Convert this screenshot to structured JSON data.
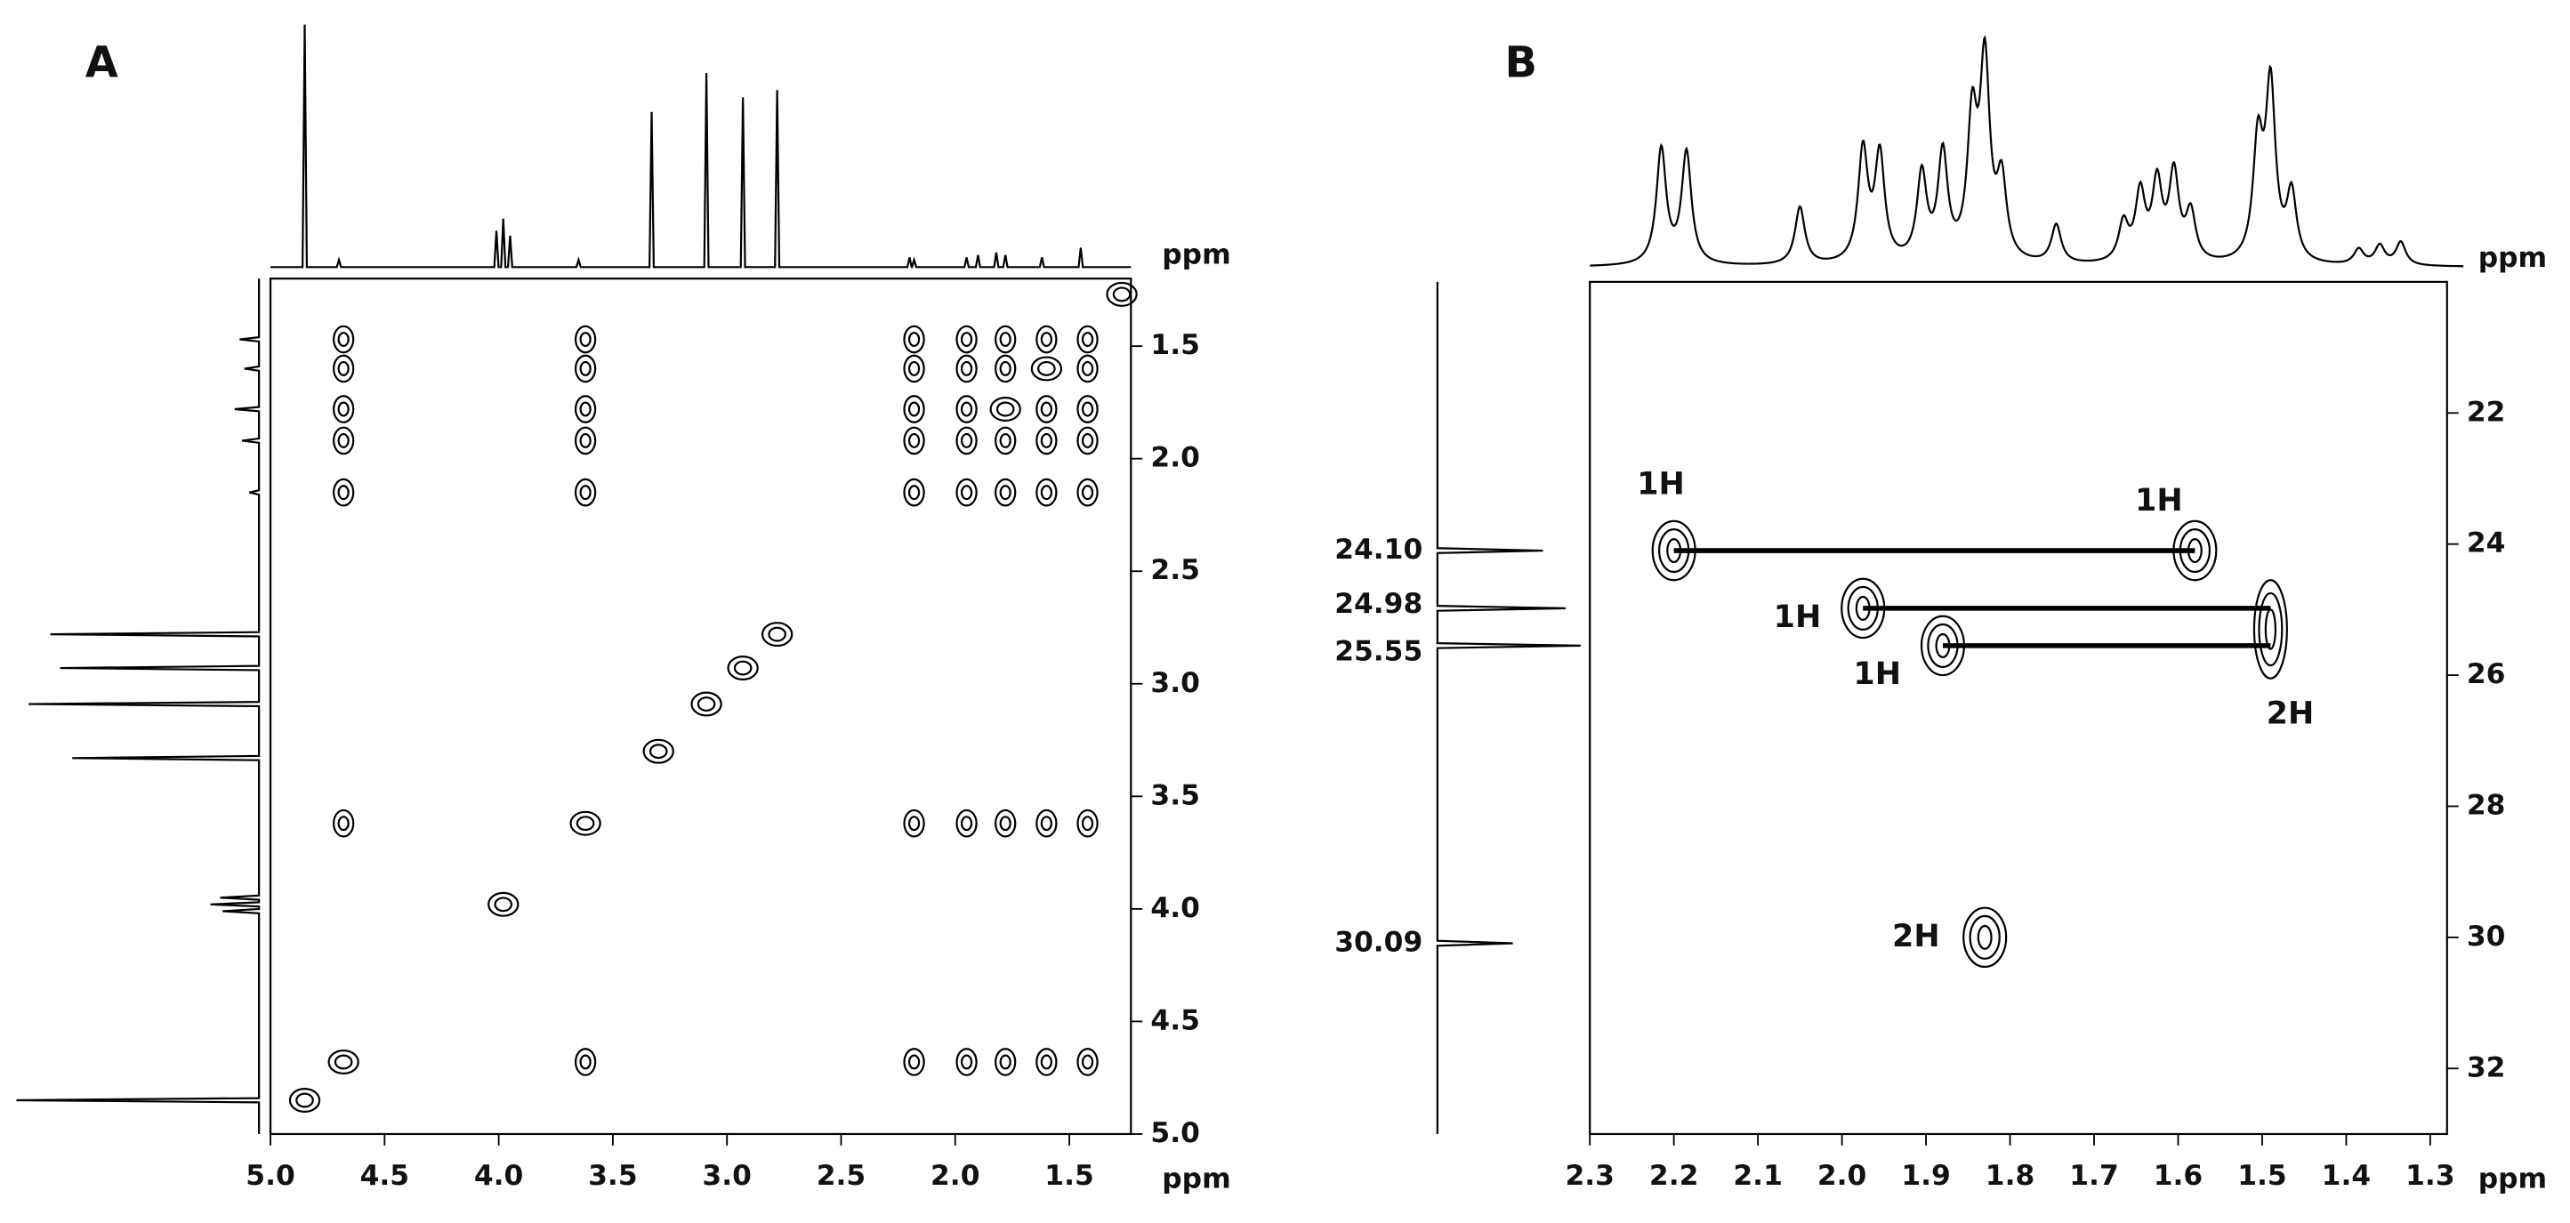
{
  "chart_data": [
    {
      "type": "contour",
      "panel_label": "A",
      "xlabel": "ppm",
      "ylabel": "ppm",
      "xlim": [
        5.0,
        1.23
      ],
      "xticks": [
        {
          "value": 5,
          "label": "5.0"
        },
        4.5,
        {
          "value": 4,
          "label": "4.0"
        },
        3.5,
        {
          "value": 3,
          "label": "3.0"
        },
        2.5,
        {
          "value": 2,
          "label": "2.0"
        },
        1.5
      ],
      "ylim": [
        5.0,
        1.2
      ],
      "yticks": [
        1.5,
        {
          "value": 2,
          "label": "2.0"
        },
        2.5,
        {
          "value": 3,
          "label": "3.0"
        },
        3.5,
        {
          "value": 4,
          "label": "4.0"
        },
        4.5,
        {
          "value": 5,
          "label": "5.0"
        }
      ],
      "peaks": {
        "x": [
          4.68,
          3.62,
          2.18,
          1.95,
          1.78,
          1.6,
          1.42,
          4.68,
          3.62,
          2.18,
          1.95,
          1.78,
          1.6,
          1.42,
          4.68,
          3.62,
          2.18,
          1.95,
          1.78,
          1.6,
          1.42,
          4.68,
          3.62,
          2.18,
          1.95,
          1.78,
          1.6,
          1.42,
          4.68,
          3.62,
          2.18,
          1.95,
          1.78,
          1.6,
          1.42,
          4.68,
          3.62,
          2.18,
          1.95,
          1.78,
          1.6,
          1.42,
          4.68,
          3.62,
          2.18,
          1.95,
          1.78,
          1.6,
          1.42,
          2.78,
          2.93,
          3.09,
          3.3,
          3.98,
          4.85,
          1.27
        ],
        "y": [
          1.47,
          1.47,
          1.47,
          1.47,
          1.47,
          1.47,
          1.47,
          1.6,
          1.6,
          1.6,
          1.6,
          1.6,
          1.6,
          1.6,
          1.78,
          1.78,
          1.78,
          1.78,
          1.78,
          1.78,
          1.78,
          1.92,
          1.92,
          1.92,
          1.92,
          1.92,
          1.92,
          1.92,
          2.15,
          2.15,
          2.15,
          2.15,
          2.15,
          2.15,
          2.15,
          3.62,
          3.62,
          3.62,
          3.62,
          3.62,
          3.62,
          3.62,
          4.68,
          4.68,
          4.68,
          4.68,
          4.68,
          4.68,
          4.68,
          2.78,
          2.93,
          3.09,
          3.3,
          3.98,
          4.85,
          1.27
        ]
      },
      "top_projection": {
        "ppm": [
          4.85,
          4.7,
          4.01,
          3.98,
          3.95,
          3.65,
          3.33,
          3.09,
          2.93,
          2.78,
          2.2,
          2.18,
          1.95,
          1.9,
          1.82,
          1.78,
          1.62,
          1.45
        ],
        "intensity": [
          100,
          3,
          15,
          20,
          13,
          3,
          64,
          80,
          70,
          73,
          4,
          3,
          4,
          5,
          6,
          5,
          4,
          8
        ]
      },
      "left_projection": {
        "ppm": [
          1.47,
          1.6,
          1.78,
          1.92,
          2.15,
          2.78,
          2.93,
          3.09,
          3.33,
          3.95,
          3.98,
          4.01,
          4.85
        ],
        "intensity": [
          8,
          6,
          10,
          7,
          4,
          86,
          82,
          95,
          77,
          16,
          20,
          15,
          100
        ]
      }
    },
    {
      "type": "contour",
      "panel_label": "B",
      "xlabel": "ppm",
      "ylabel": "ppm",
      "xlim": [
        2.3,
        1.28
      ],
      "xticks": [
        2.3,
        2.2,
        2.1,
        {
          "value": 2,
          "label": "2.0"
        },
        1.9,
        1.8,
        1.7,
        1.6,
        1.5,
        1.4,
        1.3
      ],
      "ylim": [
        33,
        20
      ],
      "yticks": [
        22,
        24,
        26,
        28,
        30,
        32
      ],
      "peaks": {
        "x": [
          2.2,
          1.58,
          1.975,
          1.88,
          1.49,
          1.83
        ],
        "y": [
          24.1,
          24.1,
          24.98,
          25.55,
          25.3,
          30.0
        ],
        "labels": [
          "1H",
          "1H",
          "1H",
          "1H",
          "2H",
          "2H"
        ],
        "links": [
          [
            0,
            1
          ],
          [
            2,
            4
          ],
          [
            3,
            4
          ]
        ]
      },
      "top_projection": {
        "ppm": [
          2.215,
          2.185,
          2.05,
          1.975,
          1.955,
          1.905,
          1.88,
          1.845,
          1.83,
          1.81,
          1.745,
          1.665,
          1.645,
          1.625,
          1.605,
          1.585,
          1.505,
          1.49,
          1.465,
          1.385,
          1.36,
          1.335
        ],
        "intensity": [
          60,
          58,
          30,
          58,
          55,
          45,
          55,
          70,
          100,
          40,
          20,
          20,
          35,
          40,
          45,
          25,
          60,
          90,
          35,
          8,
          10,
          12
        ]
      },
      "left_projection": {
        "ppm": [
          24.1,
          24.98,
          25.55,
          30.09
        ],
        "intensity": [
          70,
          85,
          95,
          50
        ],
        "value_labels": [
          "24.10",
          "24.98",
          "25.55",
          "30.09"
        ]
      }
    }
  ]
}
